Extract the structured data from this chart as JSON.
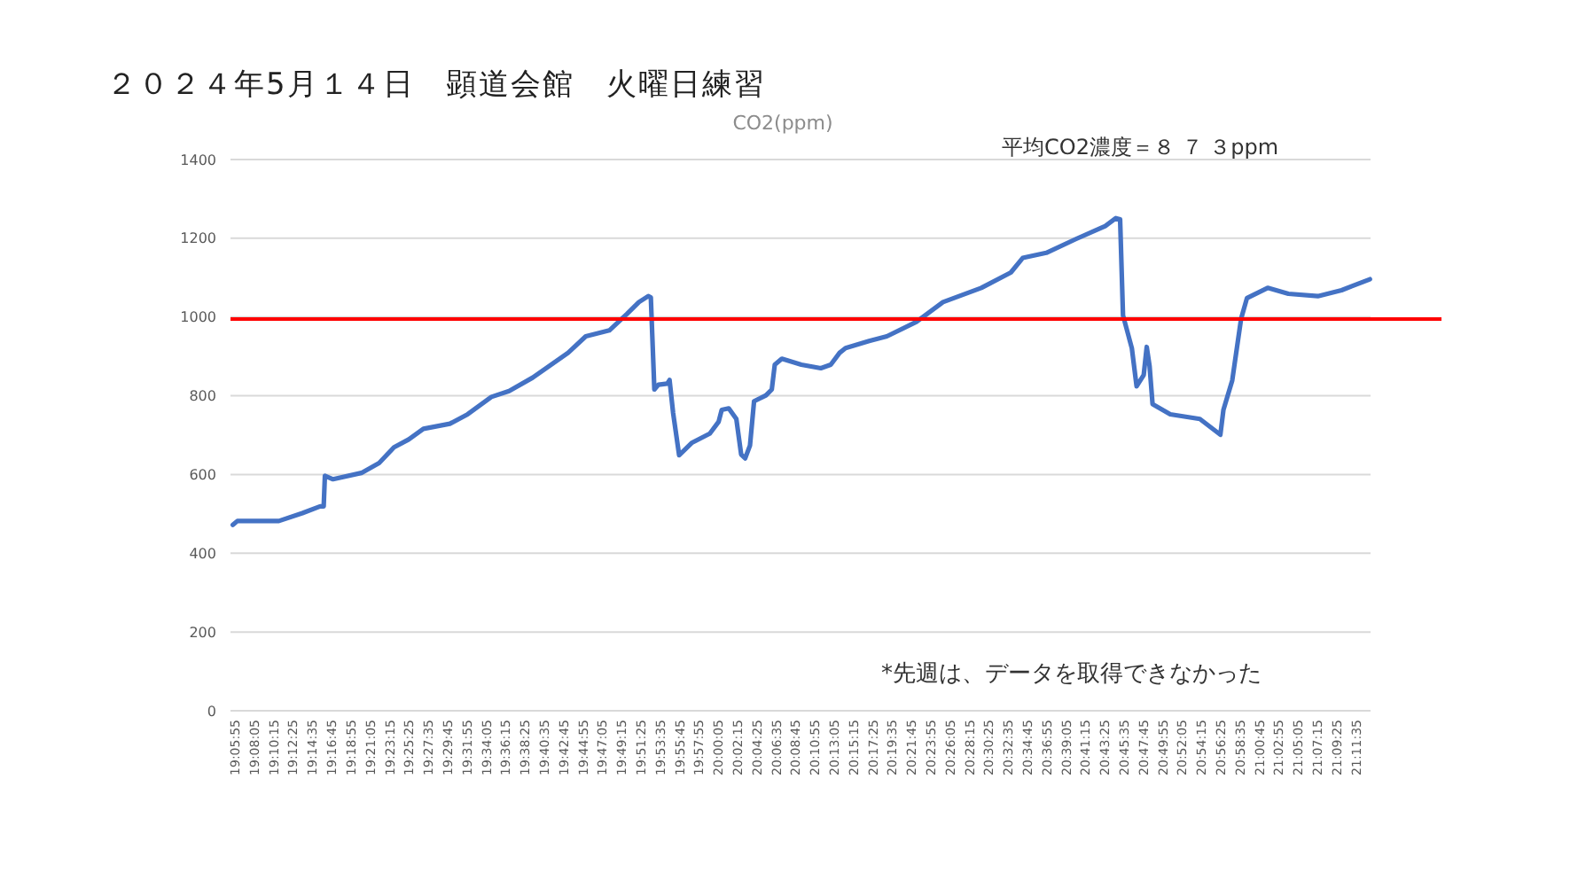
{
  "chart_data": {
    "type": "line",
    "title": "２０２４年5月１４日　顕道会館　火曜日練習",
    "subtitle": "CO2(ppm)",
    "annotations": [
      "平均CO2濃度＝８ ７ ３ppm",
      "*先週は、データを取得できなかった"
    ],
    "series": [
      {
        "color": "#4472c4",
        "x": [
          19.0943,
          19.1029,
          19.1803,
          19.2243,
          19.2574,
          19.2641,
          19.2664,
          19.2816,
          19.3345,
          19.3676,
          19.3954,
          19.4229,
          19.4504,
          19.4999,
          19.5331,
          19.5774,
          19.6105,
          19.6545,
          19.7207,
          19.7538,
          19.7978,
          19.8309,
          19.8531,
          19.8706,
          19.8753,
          19.8819,
          19.8895,
          19.906,
          19.9103,
          19.917,
          19.9282,
          19.9524,
          19.9855,
          20.002,
          20.0077,
          20.0209,
          20.0351,
          20.0441,
          20.0516,
          20.0606,
          20.0682,
          20.0904,
          20.1013,
          20.1069,
          20.1201,
          20.1565,
          20.1929,
          20.2115,
          20.228,
          20.2392,
          20.2832,
          20.3163,
          20.3716,
          20.4212,
          20.4927,
          20.5479,
          20.5701,
          20.6141,
          20.6694,
          20.7243,
          20.7442,
          20.7521,
          20.7575,
          20.774,
          20.7829,
          20.7962,
          20.8018,
          20.8071,
          20.8127,
          20.8458,
          20.9011,
          20.9394,
          20.9451,
          20.9616,
          20.9782,
          20.9891,
          21.0278,
          21.0665,
          21.1215,
          21.1658,
          21.2188
        ],
        "values": [
          472,
          482,
          482,
          502,
          519,
          519,
          597,
          588,
          604,
          629,
          669,
          689,
          716,
          729,
          753,
          797,
          812,
          846,
          909,
          951,
          966,
          1008,
          1038,
          1053,
          1050,
          816,
          828,
          831,
          840,
          756,
          649,
          681,
          704,
          734,
          764,
          768,
          741,
          651,
          641,
          674,
          786,
          801,
          816,
          879,
          894,
          879,
          870,
          879,
          909,
          921,
          939,
          951,
          988,
          1038,
          1074,
          1113,
          1150,
          1163,
          1198,
          1231,
          1251,
          1248,
          1004,
          921,
          824,
          853,
          924,
          876,
          779,
          753,
          741,
          701,
          764,
          839,
          996,
          1048,
          1074,
          1059,
          1053,
          1068,
          1096
        ]
      }
    ],
    "xlim": [
      19.09,
      21.22
    ],
    "xticks": [
      {
        "value": 19.0986,
        "label": "19:05:55"
      },
      {
        "value": 19.1347,
        "label": "19:08:05"
      },
      {
        "value": 19.1708,
        "label": "19:10:15"
      },
      {
        "value": 19.2069,
        "label": "19:12:25"
      },
      {
        "value": 19.2431,
        "label": "19:14:35"
      },
      {
        "value": 19.2792,
        "label": "19:16:45"
      },
      {
        "value": 19.3153,
        "label": "19:18:55"
      },
      {
        "value": 19.3514,
        "label": "19:21:05"
      },
      {
        "value": 19.3875,
        "label": "19:23:15"
      },
      {
        "value": 19.4236,
        "label": "19:25:25"
      },
      {
        "value": 19.4597,
        "label": "19:27:35"
      },
      {
        "value": 19.4958,
        "label": "19:29:45"
      },
      {
        "value": 19.5319,
        "label": "19:31:55"
      },
      {
        "value": 19.5681,
        "label": "19:34:05"
      },
      {
        "value": 19.6042,
        "label": "19:36:15"
      },
      {
        "value": 19.6403,
        "label": "19:38:25"
      },
      {
        "value": 19.6764,
        "label": "19:40:35"
      },
      {
        "value": 19.7125,
        "label": "19:42:45"
      },
      {
        "value": 19.7486,
        "label": "19:44:55"
      },
      {
        "value": 19.7847,
        "label": "19:47:05"
      },
      {
        "value": 19.8208,
        "label": "19:49:15"
      },
      {
        "value": 19.8569,
        "label": "19:51:25"
      },
      {
        "value": 19.8931,
        "label": "19:53:35"
      },
      {
        "value": 19.9292,
        "label": "19:55:45"
      },
      {
        "value": 19.9653,
        "label": "19:57:55"
      },
      {
        "value": 20.0014,
        "label": "20:00:05"
      },
      {
        "value": 20.0375,
        "label": "20:02:15"
      },
      {
        "value": 20.0736,
        "label": "20:04:25"
      },
      {
        "value": 20.1097,
        "label": "20:06:35"
      },
      {
        "value": 20.1458,
        "label": "20:08:45"
      },
      {
        "value": 20.1819,
        "label": "20:10:55"
      },
      {
        "value": 20.2181,
        "label": "20:13:05"
      },
      {
        "value": 20.2542,
        "label": "20:15:15"
      },
      {
        "value": 20.2903,
        "label": "20:17:25"
      },
      {
        "value": 20.3264,
        "label": "20:19:35"
      },
      {
        "value": 20.3625,
        "label": "20:21:45"
      },
      {
        "value": 20.3986,
        "label": "20:23:55"
      },
      {
        "value": 20.4347,
        "label": "20:26:05"
      },
      {
        "value": 20.4708,
        "label": "20:28:15"
      },
      {
        "value": 20.5069,
        "label": "20:30:25"
      },
      {
        "value": 20.5431,
        "label": "20:32:35"
      },
      {
        "value": 20.5792,
        "label": "20:34:45"
      },
      {
        "value": 20.6153,
        "label": "20:36:55"
      },
      {
        "value": 20.6514,
        "label": "20:39:05"
      },
      {
        "value": 20.6875,
        "label": "20:41:15"
      },
      {
        "value": 20.7236,
        "label": "20:43:25"
      },
      {
        "value": 20.7597,
        "label": "20:45:35"
      },
      {
        "value": 20.7958,
        "label": "20:47:45"
      },
      {
        "value": 20.8319,
        "label": "20:49:55"
      },
      {
        "value": 20.8681,
        "label": "20:52:05"
      },
      {
        "value": 20.9042,
        "label": "20:54:15"
      },
      {
        "value": 20.9403,
        "label": "20:56:25"
      },
      {
        "value": 20.9764,
        "label": "20:58:35"
      },
      {
        "value": 21.0125,
        "label": "21:00:45"
      },
      {
        "value": 21.0486,
        "label": "21:02:55"
      },
      {
        "value": 21.0847,
        "label": "21:05:05"
      },
      {
        "value": 21.1208,
        "label": "21:07:15"
      },
      {
        "value": 21.1569,
        "label": "21:09:25"
      },
      {
        "value": 21.1931,
        "label": "21:11:35"
      }
    ],
    "ylim": [
      0,
      1400
    ],
    "yticks": [
      0,
      200,
      400,
      600,
      800,
      1000,
      1200,
      1400
    ],
    "ref_lines": [
      {
        "axis": "y",
        "value": 995,
        "color": "#ff0000"
      }
    ],
    "grid": "y",
    "marker": "none",
    "line_style": "solid"
  }
}
